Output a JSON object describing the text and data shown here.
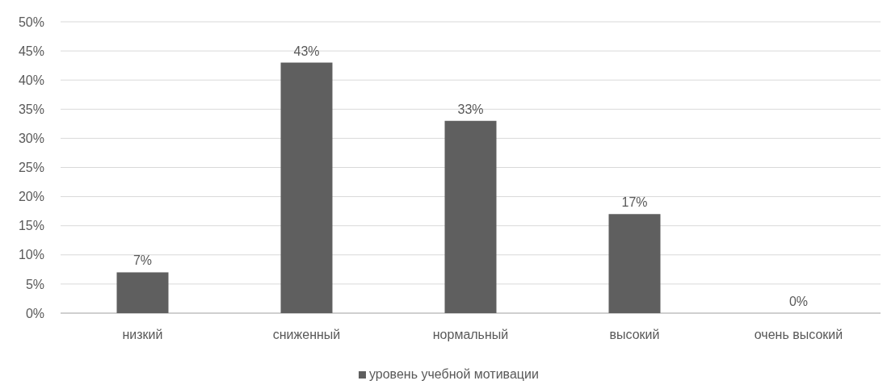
{
  "chart_data": {
    "type": "bar",
    "categories": [
      "низкий",
      "сниженный",
      "нормальный",
      "высокий",
      "очень высокий"
    ],
    "series": [
      {
        "name": "уровень учебной мотивации",
        "color": "#5f5f5f",
        "values": [
          7,
          43,
          33,
          17,
          0
        ],
        "value_labels": [
          "7%",
          "43%",
          "33%",
          "17%",
          "0%"
        ]
      }
    ],
    "ylim": [
      0,
      50
    ],
    "yticks": [
      {
        "value": 0,
        "label": "0%"
      },
      {
        "value": 5,
        "label": "5%"
      },
      {
        "value": 10,
        "label": "10%"
      },
      {
        "value": 15,
        "label": "15%"
      },
      {
        "value": 20,
        "label": "20%"
      },
      {
        "value": 25,
        "label": "25%"
      },
      {
        "value": 30,
        "label": "30%"
      },
      {
        "value": 35,
        "label": "35%"
      },
      {
        "value": 40,
        "label": "40%"
      },
      {
        "value": 45,
        "label": "45%"
      },
      {
        "value": 50,
        "label": "50%"
      }
    ],
    "grid": "y",
    "legend": "bottom"
  }
}
